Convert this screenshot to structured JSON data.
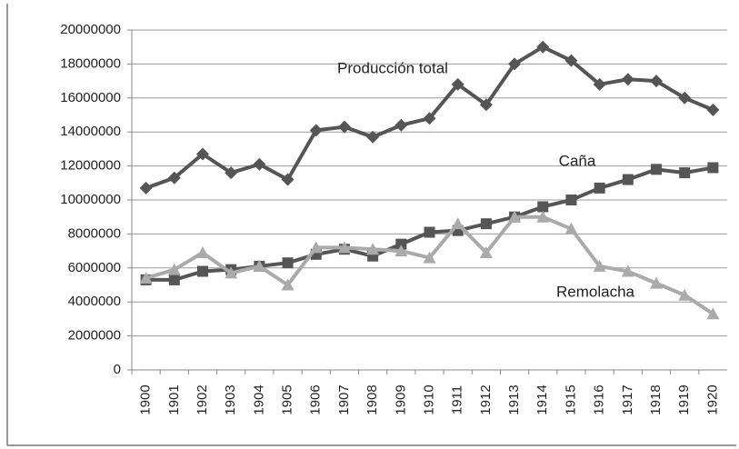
{
  "chart_data": {
    "type": "line",
    "categories": [
      "1900",
      "1901",
      "1902",
      "1903",
      "1904",
      "1905",
      "1906",
      "1907",
      "1908",
      "1909",
      "1910",
      "1911",
      "1912",
      "1913",
      "1914",
      "1915",
      "1916",
      "1917",
      "1918",
      "1919",
      "1920"
    ],
    "series": [
      {
        "name": "Producción total",
        "color": "#555555",
        "marker": "diamond",
        "values": [
          10700000,
          11300000,
          12700000,
          11600000,
          12100000,
          11200000,
          14100000,
          14300000,
          13700000,
          14400000,
          14800000,
          16800000,
          15600000,
          18000000,
          19000000,
          18200000,
          16800000,
          17100000,
          17000000,
          16000000,
          15300000
        ]
      },
      {
        "name": "Caña",
        "color": "#555555",
        "marker": "square",
        "values": [
          5300000,
          5300000,
          5800000,
          5900000,
          6100000,
          6300000,
          6800000,
          7100000,
          6700000,
          7400000,
          8100000,
          8200000,
          8600000,
          9000000,
          9600000,
          10000000,
          10700000,
          11200000,
          11800000,
          11600000,
          11900000
        ]
      },
      {
        "name": "Remolacha",
        "color": "#aaaaaa",
        "marker": "triangle",
        "values": [
          5400000,
          5900000,
          6900000,
          5700000,
          6100000,
          5000000,
          7200000,
          7200000,
          7100000,
          7000000,
          6600000,
          8600000,
          6900000,
          9000000,
          9000000,
          8300000,
          6100000,
          5800000,
          5100000,
          4400000,
          3300000
        ]
      }
    ],
    "ylim": [
      0,
      20000000
    ],
    "yticks": [
      0,
      2000000,
      4000000,
      6000000,
      8000000,
      10000000,
      12000000,
      14000000,
      16000000,
      18000000,
      20000000
    ],
    "grid": true
  }
}
